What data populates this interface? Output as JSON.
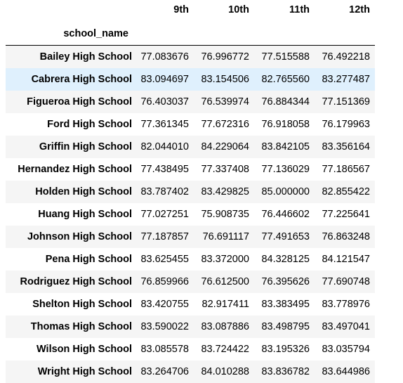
{
  "table": {
    "columns": [
      "9th",
      "10th",
      "11th",
      "12th"
    ],
    "index_name": "school_name",
    "highlighted_row": 1,
    "highlight_color": "#dff0fd",
    "stripe_color": "#f5f5f5",
    "rows": [
      {
        "school": "Bailey High School",
        "values": [
          "77.083676",
          "76.996772",
          "77.515588",
          "76.492218"
        ]
      },
      {
        "school": "Cabrera High School",
        "values": [
          "83.094697",
          "83.154506",
          "82.765560",
          "83.277487"
        ]
      },
      {
        "school": "Figueroa High School",
        "values": [
          "76.403037",
          "76.539974",
          "76.884344",
          "77.151369"
        ]
      },
      {
        "school": "Ford High School",
        "values": [
          "77.361345",
          "77.672316",
          "76.918058",
          "76.179963"
        ]
      },
      {
        "school": "Griffin High School",
        "values": [
          "82.044010",
          "84.229064",
          "83.842105",
          "83.356164"
        ]
      },
      {
        "school": "Hernandez High School",
        "values": [
          "77.438495",
          "77.337408",
          "77.136029",
          "77.186567"
        ]
      },
      {
        "school": "Holden High School",
        "values": [
          "83.787402",
          "83.429825",
          "85.000000",
          "82.855422"
        ]
      },
      {
        "school": "Huang High School",
        "values": [
          "77.027251",
          "75.908735",
          "76.446602",
          "77.225641"
        ]
      },
      {
        "school": "Johnson High School",
        "values": [
          "77.187857",
          "76.691117",
          "77.491653",
          "76.863248"
        ]
      },
      {
        "school": "Pena High School",
        "values": [
          "83.625455",
          "83.372000",
          "84.328125",
          "84.121547"
        ]
      },
      {
        "school": "Rodriguez High School",
        "values": [
          "76.859966",
          "76.612500",
          "76.395626",
          "77.690748"
        ]
      },
      {
        "school": "Shelton High School",
        "values": [
          "83.420755",
          "82.917411",
          "83.383495",
          "83.778976"
        ]
      },
      {
        "school": "Thomas High School",
        "values": [
          "83.590022",
          "83.087886",
          "83.498795",
          "83.497041"
        ]
      },
      {
        "school": "Wilson High School",
        "values": [
          "83.085578",
          "83.724422",
          "83.195326",
          "83.035794"
        ]
      },
      {
        "school": "Wright High School",
        "values": [
          "83.264706",
          "84.010288",
          "83.836782",
          "83.644986"
        ]
      }
    ]
  }
}
